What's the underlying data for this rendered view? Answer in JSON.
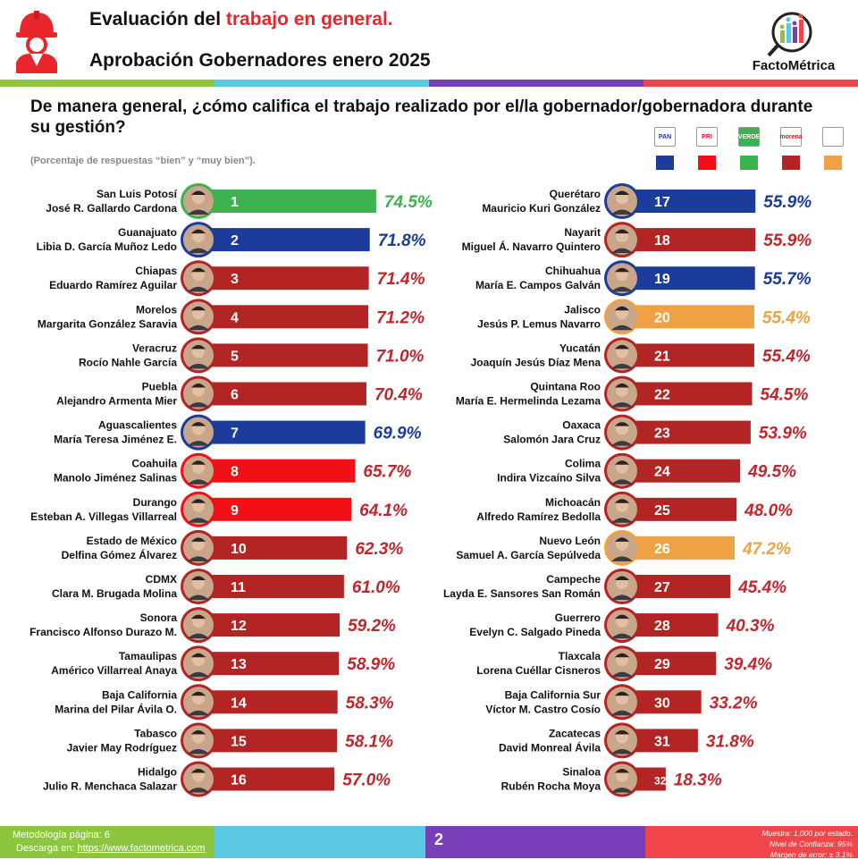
{
  "header": {
    "title1_prefix": "Evaluación del ",
    "title1_accent": "trabajo en general.",
    "title2": "Aprobación Gobernadores enero 2025",
    "brand": "FactoMétrica"
  },
  "question": "De manera general, ¿cómo califica el trabajo realizado por el/la gobernador/gobernadora durante su gestión?",
  "subnote": "(Porcentaje de respuestas “bien” y “muy bien”).",
  "colors": {
    "PAN": "#1b3c9a",
    "PRI": "#f01016",
    "PVEM": "#3cb250",
    "MORENA": "#b22524",
    "MC": "#efa144",
    "value_text_PAN": "#1b3c9a",
    "value_text_PVEM": "#3cb250",
    "value_text_default": "#c0262c",
    "value_text_MC": "#efa144",
    "topbar": [
      "#8cc63f",
      "#5bc8e2",
      "#7a3fb8",
      "#f0454a"
    ]
  },
  "legend": [
    {
      "party": "PAN",
      "label": "PAN"
    },
    {
      "party": "PRI",
      "label": "PRI"
    },
    {
      "party": "PVEM",
      "label": "VERDE"
    },
    {
      "party": "MORENA",
      "label": "morena"
    },
    {
      "party": "MC",
      "label": ""
    }
  ],
  "chart_data": {
    "type": "bar",
    "orientation": "horizontal",
    "xlim": [
      0,
      100
    ],
    "series": [
      {
        "rank": 1,
        "state": "San Luis Potosí",
        "governor": "José R. Gallardo Cardona",
        "value": 74.5,
        "label": "74.5%",
        "party": "PVEM"
      },
      {
        "rank": 2,
        "state": "Guanajuato",
        "governor": "Libia D. García Muñoz Ledo",
        "value": 71.8,
        "label": "71.8%",
        "party": "PAN"
      },
      {
        "rank": 3,
        "state": "Chiapas",
        "governor": "Eduardo Ramírez Aguilar",
        "value": 71.4,
        "label": "71.4%",
        "party": "MORENA"
      },
      {
        "rank": 4,
        "state": "Morelos",
        "governor": "Margarita González Saravia",
        "value": 71.2,
        "label": "71.2%",
        "party": "MORENA"
      },
      {
        "rank": 5,
        "state": "Veracruz",
        "governor": "Rocío Nahle García",
        "value": 71.0,
        "label": "71.0%",
        "party": "MORENA"
      },
      {
        "rank": 6,
        "state": "Puebla",
        "governor": "Alejandro Armenta Mier",
        "value": 70.4,
        "label": "70.4%",
        "party": "MORENA"
      },
      {
        "rank": 7,
        "state": "Aguascalientes",
        "governor": "María Teresa Jiménez E.",
        "value": 69.9,
        "label": "69.9%",
        "party": "PAN"
      },
      {
        "rank": 8,
        "state": "Coahuila",
        "governor": "Manolo Jiménez Salinas",
        "value": 65.7,
        "label": "65.7%",
        "party": "PRI"
      },
      {
        "rank": 9,
        "state": "Durango",
        "governor": "Esteban A. Villegas Villarreal",
        "value": 64.1,
        "label": "64.1%",
        "party": "PRI"
      },
      {
        "rank": 10,
        "state": "Estado de México",
        "governor": "Delfina Gómez Álvarez",
        "value": 62.3,
        "label": "62.3%",
        "party": "MORENA"
      },
      {
        "rank": 11,
        "state": "CDMX",
        "governor": "Clara M. Brugada Molina",
        "value": 61.0,
        "label": "61.0%",
        "party": "MORENA"
      },
      {
        "rank": 12,
        "state": "Sonora",
        "governor": "Francisco Alfonso Durazo M.",
        "value": 59.2,
        "label": "59.2%",
        "party": "MORENA"
      },
      {
        "rank": 13,
        "state": "Tamaulipas",
        "governor": "Américo Villarreal Anaya",
        "value": 58.9,
        "label": "58.9%",
        "party": "MORENA"
      },
      {
        "rank": 14,
        "state": "Baja California",
        "governor": "Marina del Pilar Ávila O.",
        "value": 58.3,
        "label": "58.3%",
        "party": "MORENA"
      },
      {
        "rank": 15,
        "state": "Tabasco",
        "governor": "Javier May Rodríguez",
        "value": 58.1,
        "label": "58.1%",
        "party": "MORENA"
      },
      {
        "rank": 16,
        "state": "Hidalgo",
        "governor": "Julio R. Menchaca Salazar",
        "value": 57.0,
        "label": "57.0%",
        "party": "MORENA"
      },
      {
        "rank": 17,
        "state": "Querétaro",
        "governor": "Mauricio Kuri González",
        "value": 55.9,
        "label": "55.9%",
        "party": "PAN"
      },
      {
        "rank": 18,
        "state": "Nayarit",
        "governor": "Miguel Á. Navarro Quintero",
        "value": 55.9,
        "label": "55.9%",
        "party": "MORENA"
      },
      {
        "rank": 19,
        "state": "Chihuahua",
        "governor": "María E. Campos Galván",
        "value": 55.7,
        "label": "55.7%",
        "party": "PAN"
      },
      {
        "rank": 20,
        "state": "Jalisco",
        "governor": "Jesús P. Lemus Navarro",
        "value": 55.4,
        "label": "55.4%",
        "party": "MC"
      },
      {
        "rank": 21,
        "state": "Yucatán",
        "governor": "Joaquín Jesús Díaz Mena",
        "value": 55.4,
        "label": "55.4%",
        "party": "MORENA"
      },
      {
        "rank": 22,
        "state": "Quintana Roo",
        "governor": "María E. Hermelinda Lezama",
        "value": 54.5,
        "label": "54.5%",
        "party": "MORENA"
      },
      {
        "rank": 23,
        "state": "Oaxaca",
        "governor": "Salomón Jara Cruz",
        "value": 53.9,
        "label": "53.9%",
        "party": "MORENA"
      },
      {
        "rank": 24,
        "state": "Colima",
        "governor": "Indira Vizcaíno Silva",
        "value": 49.5,
        "label": "49.5%",
        "party": "MORENA"
      },
      {
        "rank": 25,
        "state": "Michoacán",
        "governor": "Alfredo Ramírez Bedolla",
        "value": 48.0,
        "label": "48.0%",
        "party": "MORENA"
      },
      {
        "rank": 26,
        "state": "Nuevo León",
        "governor": "Samuel A. García Sepúlveda",
        "value": 47.2,
        "label": "47.2%",
        "party": "MC"
      },
      {
        "rank": 27,
        "state": "Campeche",
        "governor": "Layda E. Sansores San Román",
        "value": 45.4,
        "label": "45.4%",
        "party": "MORENA"
      },
      {
        "rank": 28,
        "state": "Guerrero",
        "governor": "Evelyn C. Salgado Pineda",
        "value": 40.3,
        "label": "40.3%",
        "party": "MORENA"
      },
      {
        "rank": 29,
        "state": "Tlaxcala",
        "governor": "Lorena Cuéllar Cisneros",
        "value": 39.4,
        "label": "39.4%",
        "party": "MORENA"
      },
      {
        "rank": 30,
        "state": "Baja California Sur",
        "governor": "Víctor M. Castro Cosío",
        "value": 33.2,
        "label": "33.2%",
        "party": "MORENA"
      },
      {
        "rank": 31,
        "state": "Zacatecas",
        "governor": "David Monreal Ávila",
        "value": 31.8,
        "label": "31.8%",
        "party": "MORENA"
      },
      {
        "rank": 32,
        "state": "Sinaloa",
        "governor": "Rubén Rocha Moya",
        "value": 18.3,
        "label": "18.3%",
        "party": "MORENA"
      }
    ]
  },
  "footer": {
    "method": "Metodología página: 6",
    "download_prefix": "Descarga en: ",
    "download_link": "https://www.factometrica.com",
    "page": "2",
    "notes": [
      "Muestra: 1,000 por estado.",
      "Nivel de Confianza: 95%",
      "Margen de error: ± 3.1%"
    ]
  }
}
